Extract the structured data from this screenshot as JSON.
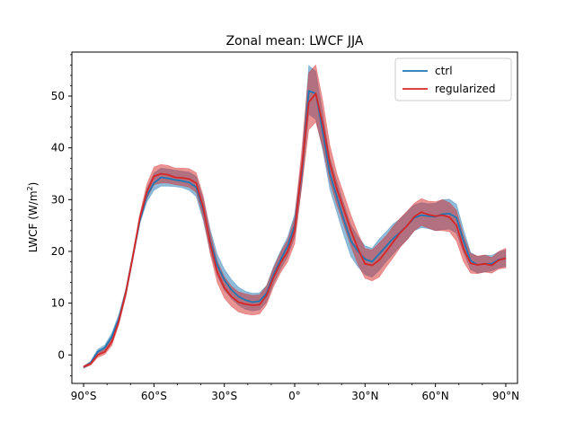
{
  "chart_data": {
    "type": "line",
    "title": "Zonal mean: LWCF JJA",
    "xlabel": "",
    "ylabel": "LWCF (W/m²)",
    "ylabel_parts": {
      "base": "LWCF (W/m",
      "sup": "2",
      "end": ")"
    },
    "xlim": [
      -95,
      95
    ],
    "ylim": [
      -5.5,
      58.5
    ],
    "xticks": [
      -90,
      -60,
      -30,
      0,
      30,
      60,
      90
    ],
    "xtick_labels": [
      "90°S",
      "60°S",
      "30°S",
      "0°",
      "30°N",
      "60°N",
      "90°N"
    ],
    "yticks": [
      0,
      10,
      20,
      30,
      40,
      50
    ],
    "ytick_labels": [
      "0",
      "10",
      "20",
      "30",
      "40",
      "50"
    ],
    "grid": false,
    "legend_position": "top-right",
    "x": [
      -90,
      -87,
      -84,
      -81,
      -78,
      -75,
      -72,
      -69,
      -66,
      -63,
      -60,
      -57,
      -54,
      -51,
      -48,
      -45,
      -42,
      -39,
      -36,
      -33,
      -30,
      -27,
      -24,
      -21,
      -18,
      -15,
      -12,
      -9,
      -6,
      -3,
      0,
      3,
      6,
      9,
      12,
      15,
      18,
      21,
      24,
      27,
      30,
      33,
      36,
      39,
      42,
      45,
      48,
      51,
      54,
      57,
      60,
      63,
      66,
      69,
      72,
      75,
      78,
      81,
      84,
      87,
      90
    ],
    "series": [
      {
        "name": "ctrl",
        "color": "#1f77b4",
        "values": [
          -2.4,
          -1.5,
          0.6,
          1.4,
          3.5,
          7.0,
          12.0,
          19.0,
          26.0,
          30.8,
          33.2,
          34.3,
          34.1,
          33.8,
          33.6,
          33.3,
          32.4,
          28.0,
          22.0,
          17.3,
          14.5,
          12.6,
          11.3,
          10.6,
          10.2,
          10.4,
          11.9,
          15.5,
          18.4,
          21.0,
          25.0,
          35.0,
          51.0,
          50.5,
          43.0,
          35.0,
          30.5,
          26.0,
          22.0,
          20.0,
          18.5,
          18.0,
          19.5,
          21.0,
          22.5,
          23.7,
          25.0,
          26.5,
          27.0,
          26.8,
          26.7,
          27.2,
          27.3,
          26.5,
          22.0,
          18.2,
          17.4,
          17.6,
          17.6,
          18.4,
          18.7
        ],
        "lower": [
          -2.6,
          -1.8,
          0.2,
          0.9,
          2.8,
          6.3,
          11.3,
          18.4,
          25.4,
          29.6,
          31.8,
          32.6,
          32.6,
          32.5,
          32.3,
          31.8,
          30.6,
          26.0,
          20.0,
          15.3,
          12.5,
          10.9,
          9.6,
          8.8,
          8.5,
          8.7,
          10.2,
          13.8,
          16.6,
          19.0,
          22.8,
          32.5,
          46.5,
          45.5,
          39.5,
          32.0,
          27.5,
          23.0,
          19.0,
          17.0,
          15.5,
          15.0,
          16.3,
          18.0,
          19.5,
          21.0,
          22.3,
          24.0,
          24.6,
          24.4,
          24.0,
          24.2,
          24.3,
          23.5,
          19.8,
          16.5,
          15.8,
          16.0,
          16.2,
          16.8,
          17.1
        ],
        "upper": [
          -2.2,
          -1.2,
          1.1,
          1.9,
          4.2,
          7.8,
          12.8,
          19.7,
          26.7,
          32.2,
          35.1,
          36.1,
          35.9,
          35.7,
          35.5,
          35.3,
          34.5,
          30.2,
          24.2,
          19.4,
          16.6,
          14.6,
          13.1,
          12.3,
          11.9,
          12.0,
          13.4,
          17.1,
          20.1,
          22.8,
          27.2,
          37.4,
          55.9,
          54.8,
          46.6,
          38.1,
          33.5,
          29.1,
          25.1,
          22.8,
          21.1,
          20.6,
          22.4,
          23.8,
          25.3,
          26.3,
          27.7,
          29.0,
          29.4,
          29.2,
          29.3,
          30.0,
          30.1,
          29.1,
          24.2,
          19.8,
          19.0,
          19.3,
          19.2,
          19.9,
          20.3
        ]
      },
      {
        "name": "regularized",
        "color": "#d62728",
        "values": [
          -2.3,
          -1.7,
          0.0,
          0.6,
          2.5,
          6.5,
          12.0,
          19.0,
          26.5,
          31.5,
          34.5,
          35.0,
          34.8,
          34.3,
          34.2,
          34.0,
          33.2,
          28.5,
          21.5,
          16.0,
          13.0,
          11.3,
          10.2,
          9.8,
          9.6,
          9.7,
          11.5,
          15.0,
          17.8,
          20.0,
          24.0,
          36.0,
          48.8,
          50.5,
          44.5,
          37.0,
          32.0,
          28.0,
          24.0,
          20.5,
          17.6,
          17.3,
          18.3,
          20.0,
          21.8,
          23.6,
          25.0,
          26.7,
          27.6,
          27.1,
          26.8,
          27.0,
          26.6,
          25.0,
          20.5,
          17.7,
          17.4,
          17.6,
          17.3,
          18.3,
          18.7
        ],
        "lower": [
          -2.5,
          -2.0,
          -0.5,
          0.1,
          1.8,
          5.8,
          11.3,
          18.3,
          25.8,
          30.2,
          32.9,
          33.2,
          33.2,
          32.9,
          32.7,
          32.4,
          31.4,
          26.5,
          19.5,
          14.0,
          11.0,
          9.4,
          8.3,
          7.9,
          7.7,
          7.9,
          9.7,
          13.2,
          15.9,
          18.0,
          21.5,
          32.5,
          43.5,
          45.0,
          40.0,
          33.5,
          29.0,
          25.0,
          21.0,
          17.5,
          14.8,
          14.3,
          15.0,
          17.0,
          18.8,
          20.8,
          22.3,
          24.0,
          25.0,
          24.5,
          24.0,
          24.0,
          23.8,
          22.0,
          18.0,
          15.8,
          15.7,
          16.0,
          15.8,
          16.6,
          16.8
        ],
        "upper": [
          -2.1,
          -1.4,
          0.5,
          1.1,
          3.2,
          7.2,
          12.7,
          19.8,
          27.3,
          33.0,
          36.3,
          36.8,
          36.6,
          36.1,
          36.1,
          36.0,
          35.2,
          30.7,
          23.6,
          18.1,
          15.1,
          13.3,
          12.2,
          11.8,
          11.5,
          11.6,
          13.3,
          16.8,
          19.8,
          22.2,
          26.5,
          39.5,
          54.5,
          56.0,
          49.0,
          40.5,
          35.0,
          31.0,
          27.0,
          23.5,
          20.5,
          20.3,
          21.6,
          23.0,
          24.8,
          26.4,
          27.8,
          29.3,
          30.2,
          29.7,
          29.6,
          30.0,
          29.4,
          27.9,
          23.0,
          19.6,
          19.1,
          19.3,
          18.8,
          20.0,
          20.6
        ]
      }
    ]
  }
}
